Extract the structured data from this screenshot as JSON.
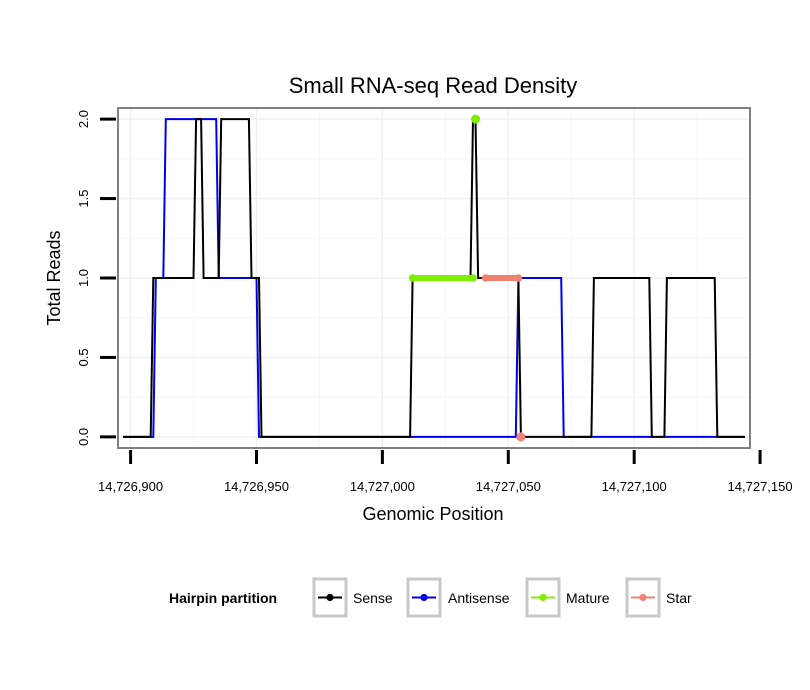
{
  "chart_data": {
    "type": "line",
    "title": "Small RNA-seq Read Density",
    "xlabel": "Genomic Position",
    "ylabel": "Total Reads",
    "xlim": [
      14726895,
      14727146
    ],
    "ylim": [
      -0.07,
      2.07
    ],
    "x_ticks": [
      14726900,
      14726950,
      14727000,
      14727050,
      14727100,
      14727150
    ],
    "x_tick_labels": [
      "14,726,900",
      "14,726,950",
      "14,727,000",
      "14,727,050",
      "14,727,100",
      "14,727,150"
    ],
    "y_ticks": [
      0,
      0.5,
      1,
      1.5,
      2
    ],
    "y_tick_labels": [
      "0.0",
      "0.5",
      "1.0",
      "1.5",
      "2.0"
    ],
    "grid": true,
    "legend": {
      "title": "Hairpin partition",
      "position": "bottom",
      "entries": [
        "Sense",
        "Antisense",
        "Mature",
        "Star"
      ]
    },
    "series": [
      {
        "name": "Antisense",
        "color": "#0000ee",
        "x": [
          14726897,
          14726909,
          14726910,
          14726913,
          14726914,
          14726934,
          14726935,
          14726950,
          14726951,
          14727053,
          14727054,
          14727071,
          14727072,
          14727144
        ],
        "y": [
          0,
          0,
          1,
          1,
          2,
          2,
          1,
          1,
          0,
          0,
          1,
          1,
          0,
          0
        ]
      },
      {
        "name": "Sense",
        "color": "#000000",
        "x": [
          14726897,
          14726908,
          14726909,
          14726925,
          14726926,
          14726928,
          14726929,
          14726935,
          14726936,
          14726947,
          14726948,
          14726951,
          14726952,
          14727011,
          14727012,
          14727035,
          14727036,
          14727037,
          14727038,
          14727054,
          14727055,
          14727083,
          14727084,
          14727106,
          14727107,
          14727112,
          14727113,
          14727132,
          14727133,
          14727144
        ],
        "y": [
          0,
          0,
          1,
          1,
          2,
          2,
          1,
          1,
          2,
          2,
          1,
          1,
          0,
          0,
          1,
          1,
          2,
          2,
          1,
          1,
          0,
          0,
          1,
          1,
          0,
          0,
          1,
          1,
          0,
          0
        ]
      },
      {
        "name": "Mature",
        "color": "#80ee00",
        "points": [
          {
            "x": 14727037,
            "y": 2
          }
        ],
        "segment": {
          "x": [
            14727012,
            14727036
          ],
          "y": 1
        }
      },
      {
        "name": "Star",
        "color": "#f08070",
        "points": [
          {
            "x": 14727055,
            "y": 0
          }
        ],
        "segment": {
          "x": [
            14727041,
            14727054
          ],
          "y": 1
        }
      }
    ]
  }
}
